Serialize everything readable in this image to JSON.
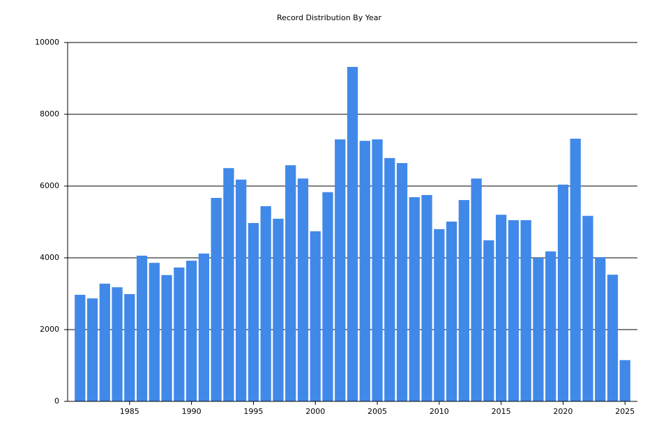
{
  "chart_data": {
    "type": "bar",
    "title": "Record Distribution By Year",
    "x": [
      1981,
      1982,
      1983,
      1984,
      1985,
      1986,
      1987,
      1988,
      1989,
      1990,
      1991,
      1992,
      1993,
      1994,
      1995,
      1996,
      1997,
      1998,
      1999,
      2000,
      2001,
      2002,
      2003,
      2004,
      2005,
      2006,
      2007,
      2008,
      2009,
      2010,
      2011,
      2012,
      2013,
      2014,
      2015,
      2016,
      2017,
      2018,
      2019,
      2020,
      2021,
      2022,
      2023,
      2024,
      2025
    ],
    "values": [
      2970,
      2870,
      3280,
      3180,
      2990,
      4060,
      3860,
      3520,
      3730,
      3920,
      4120,
      5670,
      6500,
      6180,
      4970,
      5440,
      5090,
      6580,
      6210,
      4740,
      5830,
      7300,
      9320,
      7260,
      7300,
      6780,
      6640,
      5690,
      5750,
      4800,
      5010,
      5610,
      6210,
      4490,
      5200,
      5050,
      5050,
      4000,
      4180,
      6040,
      7320,
      5170,
      4020,
      3530,
      1150
    ],
    "color": "#4189e9",
    "xlim": [
      1980,
      2026
    ],
    "xticks": [
      1985,
      1990,
      1995,
      2000,
      2005,
      2010,
      2015,
      2020,
      2025
    ],
    "ylim": [
      0,
      10000
    ],
    "yticks": [
      0,
      2000,
      4000,
      6000,
      8000,
      10000
    ],
    "grid": true
  }
}
